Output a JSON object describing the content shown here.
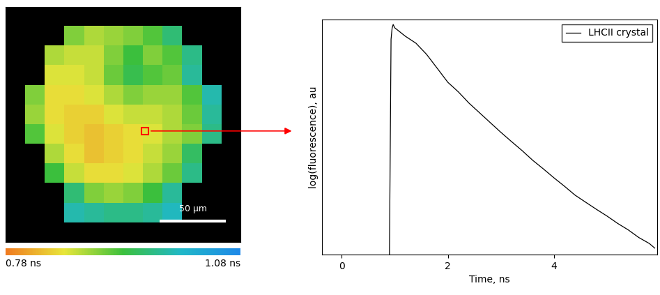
{
  "chart_data": [
    {
      "type": "image",
      "cells": [
        [
          null,
          null,
          null,
          null,
          null,
          null,
          null,
          null,
          null,
          null,
          null,
          null
        ],
        [
          null,
          null,
          null,
          0.9,
          0.88,
          0.89,
          0.9,
          0.92,
          0.96,
          null,
          null,
          null
        ],
        [
          null,
          null,
          0.88,
          0.87,
          0.87,
          0.9,
          0.93,
          0.9,
          0.92,
          0.97,
          null,
          null
        ],
        [
          null,
          null,
          0.86,
          0.86,
          0.87,
          0.91,
          0.94,
          0.92,
          0.91,
          0.98,
          null,
          null
        ],
        [
          null,
          0.9,
          0.85,
          0.85,
          0.86,
          0.88,
          0.9,
          0.89,
          0.89,
          0.92,
          0.99,
          null
        ],
        [
          null,
          0.89,
          0.85,
          0.84,
          0.84,
          0.86,
          0.87,
          0.87,
          0.88,
          0.91,
          0.98,
          null
        ],
        [
          null,
          0.92,
          0.86,
          0.84,
          0.83,
          0.84,
          0.85,
          0.86,
          0.88,
          0.9,
          0.97,
          null
        ],
        [
          null,
          null,
          0.88,
          0.85,
          0.83,
          0.84,
          0.85,
          0.87,
          0.89,
          0.95,
          null,
          null
        ],
        [
          null,
          null,
          0.93,
          0.87,
          0.85,
          0.85,
          0.86,
          0.88,
          0.91,
          0.97,
          null,
          null
        ],
        [
          null,
          null,
          null,
          0.96,
          0.9,
          0.89,
          0.9,
          0.93,
          0.98,
          null,
          null,
          null
        ],
        [
          null,
          null,
          null,
          0.99,
          0.98,
          0.97,
          0.97,
          0.98,
          1.0,
          null,
          null,
          null
        ],
        [
          null,
          null,
          null,
          null,
          null,
          null,
          null,
          null,
          null,
          null,
          null,
          null
        ]
      ],
      "xlim": [
        0,
        177
      ],
      "ylim": [
        0,
        177
      ],
      "tick_labels": false,
      "scale_bar": {
        "length": 50,
        "label": "50 µm"
      },
      "colorbar": {
        "range": [
          0.78,
          1.08
        ],
        "ticks": [
          {
            "value": 0.78,
            "label": "0.78 ns"
          },
          {
            "value": 1.08,
            "label": "1.08 ns"
          }
        ]
      }
    },
    {
      "type": "line",
      "x": [
        0.9,
        0.93,
        0.95,
        0.97,
        1.0,
        1.2,
        1.4,
        1.6,
        1.8,
        2.0,
        2.2,
        2.4,
        2.6,
        2.8,
        3.0,
        3.2,
        3.4,
        3.6,
        3.8,
        4.0,
        4.2,
        4.4,
        4.6,
        4.8,
        5.0,
        5.2,
        5.4,
        5.6,
        5.8,
        5.9
      ],
      "series": [
        {
          "name": "LHCII crystal",
          "color": "#000000",
          "values": [
            30,
            5000,
            6500,
            7100,
            6560,
            5370,
            4550,
            3490,
            2510,
            1800,
            1430,
            1095,
            870,
            690,
            548,
            440,
            355,
            282,
            230,
            186,
            152,
            123,
            104,
            88,
            75,
            63,
            54,
            45,
            39,
            35
          ]
        }
      ],
      "x_label": "Time, ns",
      "y_label": "log(fluorescence), au",
      "xlim": [
        -0.37,
        5.95
      ],
      "xticks": [
        0,
        2,
        4
      ],
      "ylim": [
        30,
        8000
      ],
      "log": "y",
      "tick_labels": "x",
      "legend": "upper right"
    }
  ]
}
